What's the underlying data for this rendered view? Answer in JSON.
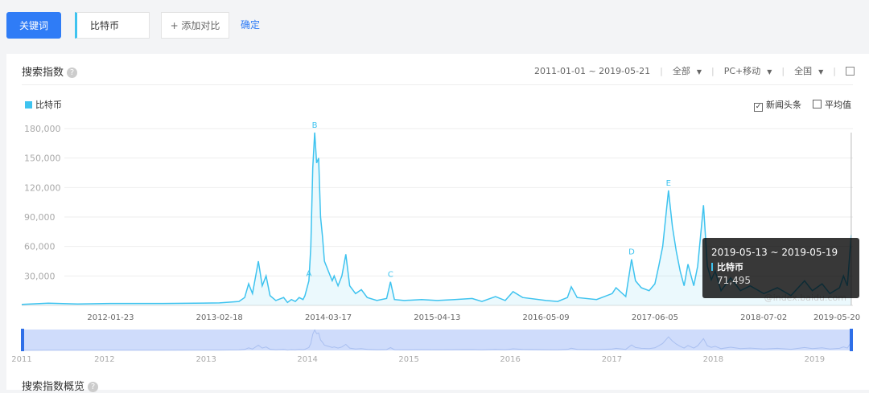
{
  "controls": {
    "keyword_button": "关键词",
    "keyword": "比特币",
    "add_compare": "+ 添加对比",
    "confirm": "确定"
  },
  "panel": {
    "title": "搜索指数",
    "date_range": "2011-01-01 ~ 2019-05-21",
    "filters": [
      "全部",
      "PC+移动",
      "全国"
    ],
    "options": [
      {
        "label": "新闻头条",
        "checked": true
      },
      {
        "label": "平均值",
        "checked": false
      }
    ]
  },
  "chart_data": {
    "type": "area",
    "x": [
      "2011-03-09",
      "2011-06-13",
      "2011-09-26",
      "2012-01-23",
      "2012-07-30",
      "2013-02-18",
      "2013-04-29",
      "2013-05-20",
      "2013-06-03",
      "2013-06-17",
      "2013-07-08",
      "2013-07-22",
      "2013-08-05",
      "2013-08-19",
      "2013-09-09",
      "2013-10-07",
      "2013-10-21",
      "2013-11-04",
      "2013-11-18",
      "2013-12-02",
      "2013-12-16",
      "2013-12-23",
      "2014-01-06",
      "2014-01-13",
      "2014-01-20",
      "2014-01-27",
      "2014-02-03",
      "2014-02-10",
      "2014-02-17",
      "2014-02-24",
      "2014-03-03",
      "2014-03-17",
      "2014-03-31",
      "2014-04-07",
      "2014-04-21",
      "2014-05-05",
      "2014-05-19",
      "2014-06-02",
      "2014-06-23",
      "2014-07-14",
      "2014-08-04",
      "2014-09-08",
      "2014-10-13",
      "2014-10-27",
      "2014-11-10",
      "2014-12-15",
      "2015-02-16",
      "2015-04-13",
      "2015-06-15",
      "2015-08-17",
      "2015-09-21",
      "2015-11-09",
      "2015-12-14",
      "2016-01-11",
      "2016-02-15",
      "2016-05-09",
      "2016-06-20",
      "2016-07-25",
      "2016-08-08",
      "2016-08-29",
      "2016-11-07",
      "2017-01-02",
      "2017-01-16",
      "2017-02-20",
      "2017-03-13",
      "2017-03-27",
      "2017-04-17",
      "2017-05-15",
      "2017-06-05",
      "2017-06-19",
      "2017-07-03",
      "2017-07-24",
      "2017-08-07",
      "2017-08-21",
      "2017-09-04",
      "2017-09-18",
      "2017-10-02",
      "2017-10-23",
      "2017-11-06",
      "2017-11-27",
      "2017-12-11",
      "2017-12-25",
      "2018-01-08",
      "2018-01-29",
      "2018-03-05",
      "2018-04-09",
      "2018-05-14",
      "2018-07-02",
      "2018-08-20",
      "2018-10-08",
      "2018-11-26",
      "2018-12-24",
      "2019-01-28",
      "2019-02-25",
      "2019-04-01",
      "2019-04-15",
      "2019-04-29",
      "2019-05-13"
    ],
    "series": [
      {
        "name": "比特币",
        "color": "#3ec3ef",
        "values": [
          1000,
          2200,
          1500,
          2000,
          2000,
          2500,
          4000,
          8000,
          22000,
          12000,
          45000,
          20000,
          30000,
          10000,
          5000,
          8000,
          3000,
          6000,
          4000,
          8000,
          6000,
          10000,
          25000,
          60000,
          140000,
          176000,
          145000,
          150000,
          90000,
          70000,
          45000,
          35000,
          25000,
          30000,
          20000,
          30000,
          52000,
          20000,
          12000,
          16000,
          8000,
          5000,
          7000,
          24000,
          6000,
          5000,
          6000,
          5000,
          6000,
          7000,
          4000,
          9000,
          5000,
          14000,
          8000,
          5000,
          4000,
          8000,
          19000,
          8000,
          6000,
          12000,
          18000,
          9000,
          47000,
          25000,
          18000,
          15000,
          22000,
          40000,
          60000,
          117000,
          80000,
          55000,
          35000,
          20000,
          42000,
          20000,
          40000,
          102000,
          40000,
          26000,
          35000,
          15000,
          28000,
          15000,
          20000,
          12000,
          18000,
          10000,
          25000,
          15000,
          22000,
          12000,
          18000,
          30000,
          20000,
          71495
        ]
      }
    ],
    "xlim": [
      "2011-03-09",
      "2019-05-19"
    ],
    "xticks": [
      "2012-01-23",
      "2013-02-18",
      "2014-03-17",
      "2015-04-13",
      "2016-05-09",
      "2017-06-05",
      "2018-07-02",
      "2019-05-20"
    ],
    "ylim": [
      0,
      180000
    ],
    "yticks": [
      {
        "value": 30000,
        "label": "30,000"
      },
      {
        "value": 60000,
        "label": "60,000"
      },
      {
        "value": 90000,
        "label": "90,000"
      },
      {
        "value": 120000,
        "label": "120,000"
      },
      {
        "value": 150000,
        "label": "150,000"
      },
      {
        "value": 180000,
        "label": "180,000"
      }
    ],
    "grid": true,
    "annotations": [
      {
        "x": "2014-01-06",
        "label": "A"
      },
      {
        "x": "2014-01-27",
        "label": "B"
      },
      {
        "x": "2014-10-27",
        "label": "C"
      },
      {
        "x": "2017-03-13",
        "label": "D"
      },
      {
        "x": "2017-07-24",
        "label": "E"
      }
    ],
    "tooltip": {
      "label": "2019-05-13 ~ 2019-05-19",
      "value_label": "71,495"
    },
    "watermark": "@index.baidu.com",
    "brush_xticks": [
      2011,
      2012,
      2013,
      2014,
      2015,
      2016,
      2017,
      2018,
      2019
    ]
  },
  "overview_title": "搜索指数概览"
}
